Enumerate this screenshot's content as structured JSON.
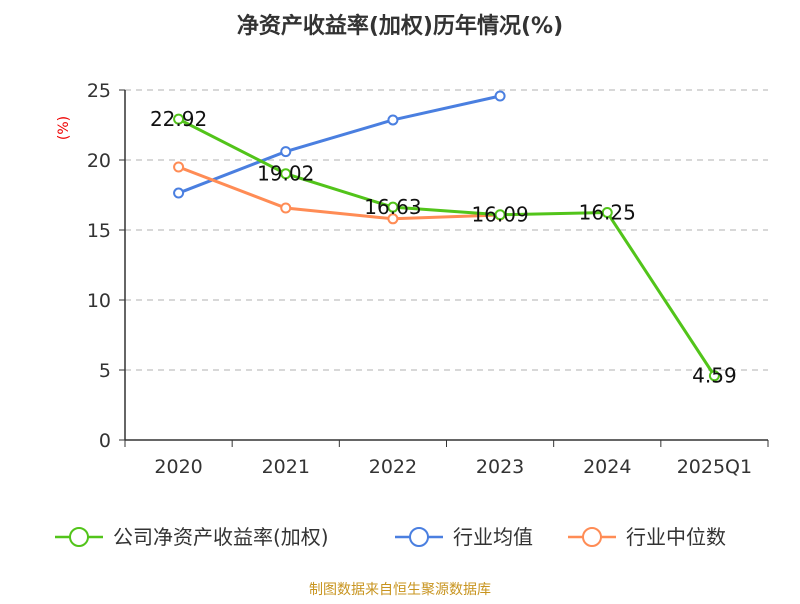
{
  "chart_data": {
    "type": "line",
    "title": "净资产收益率(加权)历年情况(%)",
    "ylabel": "(%)",
    "xlabel": "",
    "categories": [
      "2020",
      "2021",
      "2022",
      "2023",
      "2024",
      "2025Q1"
    ],
    "ylim": [
      0,
      25
    ],
    "yticks": [
      0,
      5,
      10,
      15,
      20,
      25
    ],
    "grid": true,
    "legend_position": "bottom",
    "series": [
      {
        "name": "公司净资产收益率(加权)",
        "color": "#52c41a",
        "values": [
          22.92,
          19.02,
          16.63,
          16.09,
          16.25,
          4.59
        ],
        "labels": [
          "22.92",
          "19.02",
          "16.63",
          "16.09",
          "16.25",
          "4.59"
        ]
      },
      {
        "name": "行业均值",
        "color": "#4a7fe0",
        "values": [
          17.64,
          20.6,
          22.86,
          24.57,
          null,
          null
        ]
      },
      {
        "name": "行业中位数",
        "color": "#ff8c55",
        "values": [
          19.5,
          16.57,
          15.8,
          16.07,
          null,
          null
        ]
      }
    ]
  },
  "source": "制图数据来自恒生聚源数据库"
}
